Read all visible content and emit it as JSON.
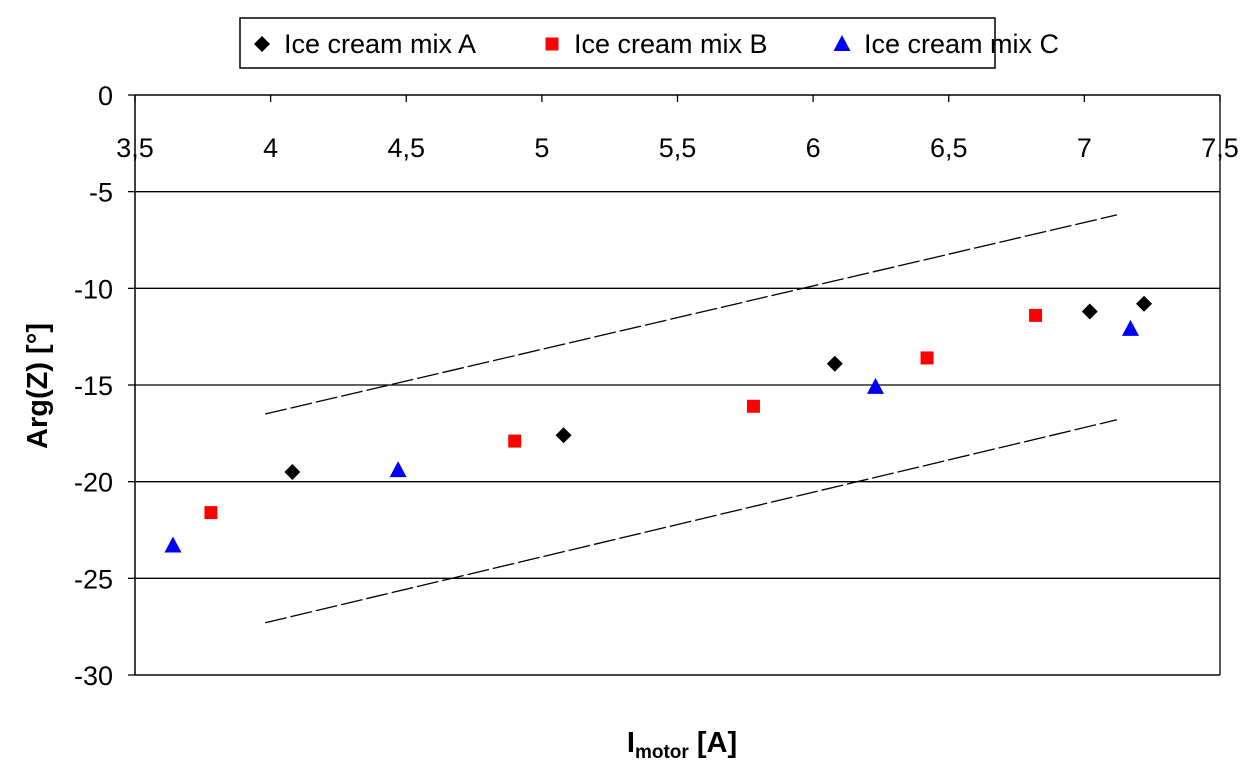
{
  "chart_data": {
    "type": "scatter",
    "title": "",
    "xlabel": "I",
    "xlabel_sub": "motor",
    "xlabel_unit": " [A]",
    "ylabel": "Arg(Z) [°]",
    "xlim": [
      3.5,
      7.5
    ],
    "ylim": [
      -30,
      0
    ],
    "x_axis_position": "top",
    "xticks": [
      3.5,
      4,
      4.5,
      5,
      5.5,
      6,
      6.5,
      7,
      7.5
    ],
    "xtick_labels": [
      "3,5",
      "4",
      "4,5",
      "5",
      "5,5",
      "6",
      "6,5",
      "7",
      "7,5"
    ],
    "yticks": [
      0,
      -5,
      -10,
      -15,
      -20,
      -25,
      -30
    ],
    "ytick_labels": [
      "0",
      "-5",
      "-10",
      "-15",
      "-20",
      "-25",
      "-30"
    ],
    "grid": "horizontal",
    "legend_position": "top",
    "series": [
      {
        "name": "Ice cream mix A",
        "marker": "diamond",
        "color": "#000000",
        "x": [
          4.08,
          5.08,
          6.08,
          7.02,
          7.22
        ],
        "y": [
          -19.5,
          -17.6,
          -13.9,
          -11.2,
          -10.8
        ]
      },
      {
        "name": "Ice cream mix B",
        "marker": "square",
        "color": "#ff0000",
        "x": [
          3.78,
          4.9,
          5.78,
          6.42,
          6.82
        ],
        "y": [
          -21.6,
          -17.9,
          -16.1,
          -13.6,
          -11.4
        ]
      },
      {
        "name": "Ice cream mix C",
        "marker": "triangle",
        "color": "#0000ff",
        "x": [
          3.64,
          4.47,
          6.23,
          7.17
        ],
        "y": [
          -23.3,
          -19.4,
          -15.1,
          -12.1
        ]
      }
    ],
    "bands": [
      {
        "style": "dashed",
        "color": "#000000",
        "x": [
          3.98,
          7.12
        ],
        "y": [
          -16.5,
          -6.2
        ]
      },
      {
        "style": "dashed",
        "color": "#000000",
        "x": [
          3.98,
          7.12
        ],
        "y": [
          -27.3,
          -16.8
        ]
      }
    ]
  }
}
